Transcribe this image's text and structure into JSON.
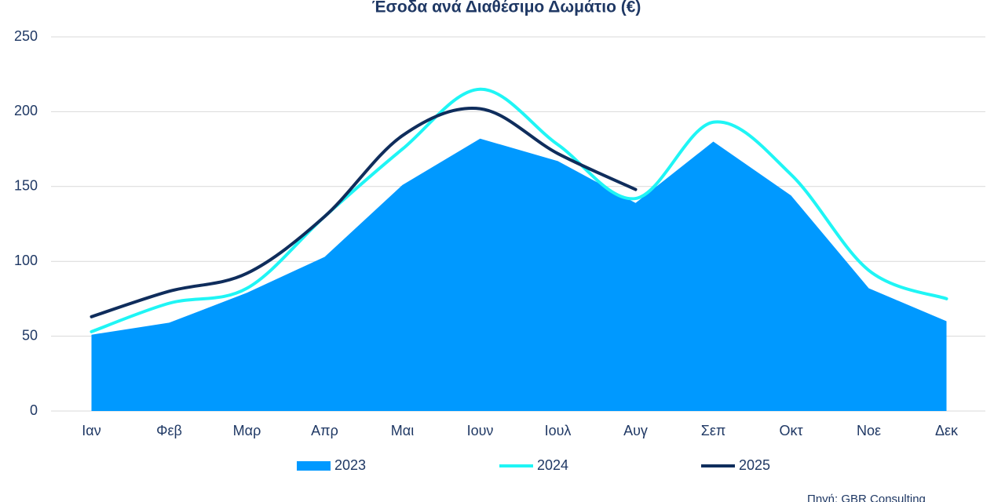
{
  "chart_data": {
    "type": "line",
    "title": "Έσοδα ανά Διαθέσιμο Δωμάτιο (€)",
    "source": "Πηγή: GBR Consulting",
    "categories": [
      "Ιαν",
      "Φεβ",
      "Μαρ",
      "Απρ",
      "Μαι",
      "Ιουν",
      "Ιουλ",
      "Αυγ",
      "Σεπ",
      "Οκτ",
      "Νοε",
      "Δεκ"
    ],
    "series": [
      {
        "name": "2023",
        "type": "area",
        "color": "#0099ff",
        "smooth": false,
        "values": [
          51,
          59,
          79,
          103,
          151,
          182,
          167,
          139,
          180,
          144,
          82,
          60
        ]
      },
      {
        "name": "2024",
        "type": "line",
        "color": "#1ff5f5",
        "smooth": true,
        "values": [
          53,
          72,
          82,
          130,
          175,
          215,
          178,
          142,
          193,
          158,
          94,
          75
        ]
      },
      {
        "name": "2025",
        "type": "line",
        "color": "#0f2d5c",
        "smooth": true,
        "values": [
          63,
          80,
          92,
          130,
          184,
          202,
          172,
          148,
          null,
          null,
          null,
          null
        ]
      }
    ],
    "ylim": [
      0,
      250
    ],
    "yticks": [
      0,
      50,
      100,
      150,
      200,
      250
    ],
    "grid": true,
    "legend": "bottom"
  }
}
